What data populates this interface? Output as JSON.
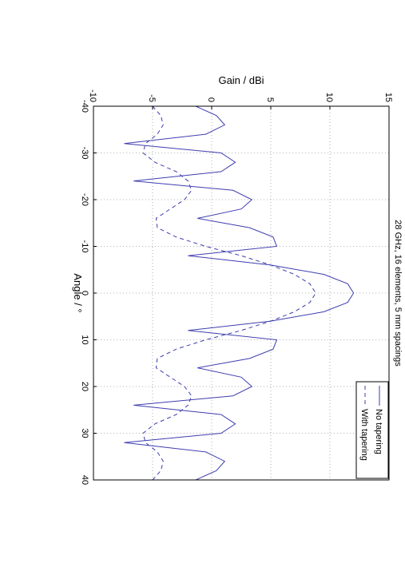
{
  "chart_data": {
    "type": "line",
    "title": "28 GHz, 16 elements, 5 mm spacings",
    "x_label": "Angle / °",
    "y_label": "Gain / dBi",
    "x": [
      -40,
      -38,
      -36,
      -34,
      -32,
      -30,
      -28,
      -26,
      -24,
      -22,
      -20,
      -18,
      -16,
      -14,
      -12,
      -10,
      -8,
      -6,
      -4,
      -2,
      0,
      2,
      4,
      6,
      8,
      10,
      12,
      14,
      16,
      18,
      20,
      22,
      24,
      26,
      28,
      30,
      32,
      34,
      36,
      38,
      40
    ],
    "series": [
      {
        "name": "No tapering",
        "color": "#3d3db0",
        "linestyle": "solid",
        "values": [
          -1.35,
          0.4,
          1.1,
          -0.5,
          -7.4,
          0.8,
          2.0,
          0.8,
          -6.6,
          1.8,
          3.4,
          2.5,
          -1.2,
          3.2,
          5.2,
          5.5,
          -2,
          5,
          9.5,
          11.5,
          12,
          11.5,
          9.5,
          5,
          -2,
          5.5,
          5.2,
          3.2,
          -1.2,
          2.5,
          3.4,
          1.8,
          -6.6,
          0.8,
          2.0,
          0.8,
          -7.4,
          -0.5,
          1.1,
          0.4,
          -1.35
        ]
      },
      {
        "name": "With tapering",
        "color": "#3d3db0",
        "linestyle": "dashed",
        "values": [
          -5,
          -4.3,
          -4.1,
          -4.6,
          -5.6,
          -5.8,
          -4.8,
          -3.0,
          -2.0,
          -1.7,
          -2.3,
          -3.5,
          -4.7,
          -4.6,
          -3,
          -0.5,
          2.5,
          5,
          7,
          8.3,
          8.8,
          8.3,
          7,
          5,
          2.5,
          -0.5,
          -3,
          -4.6,
          -4.7,
          -3.5,
          -2.3,
          -1.7,
          -2.0,
          -3.0,
          -4.8,
          -5.8,
          -5.6,
          -4.6,
          -4.1,
          -4.3,
          -5
        ]
      }
    ],
    "xlim": [
      -40,
      40
    ],
    "xticks": [
      -40,
      -30,
      -20,
      -10,
      0,
      10,
      20,
      30,
      40
    ],
    "ylim": [
      -10,
      15
    ],
    "yticks": [
      -10,
      -5,
      0,
      5,
      10,
      15
    ],
    "grid": true,
    "legend": "northeast",
    "rotation": 90
  }
}
